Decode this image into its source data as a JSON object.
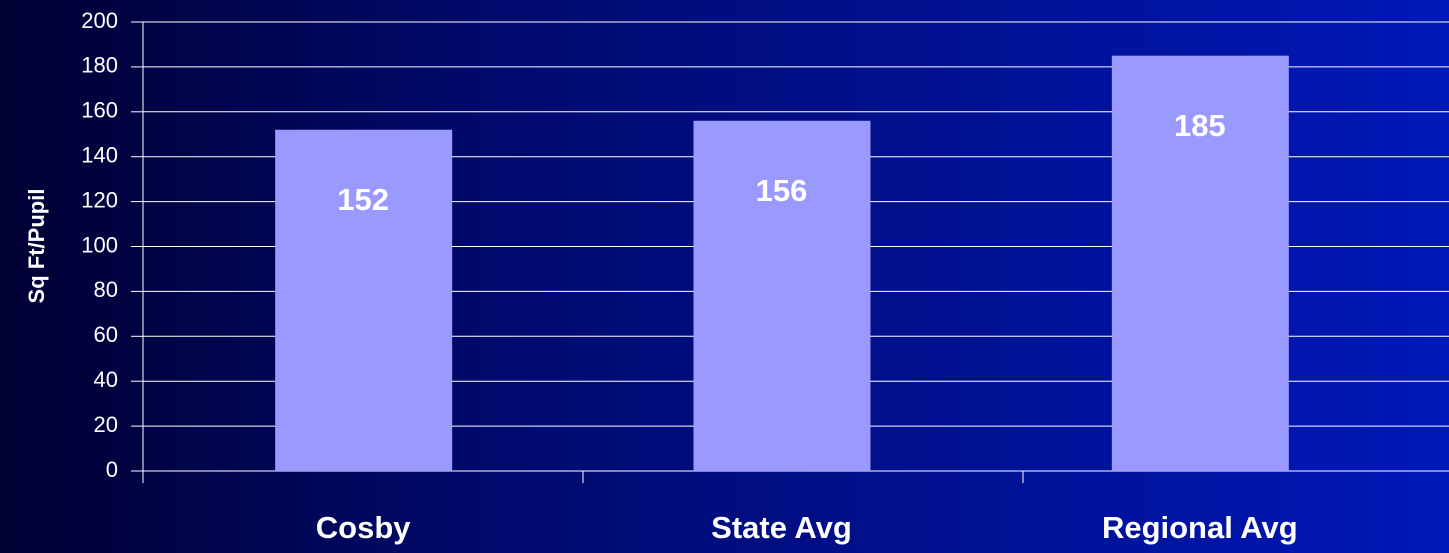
{
  "chart_data": {
    "type": "bar",
    "y_label": "Sq Ft/Pupil",
    "categories": [
      "Cosby",
      "State Avg",
      "Regional Avg"
    ],
    "values": [
      152,
      156,
      185
    ],
    "color": "#9999ff",
    "ylim": [
      0,
      200
    ],
    "yticks": [
      0,
      20,
      40,
      60,
      80,
      100,
      120,
      140,
      160,
      180,
      200
    ],
    "grid": true
  }
}
